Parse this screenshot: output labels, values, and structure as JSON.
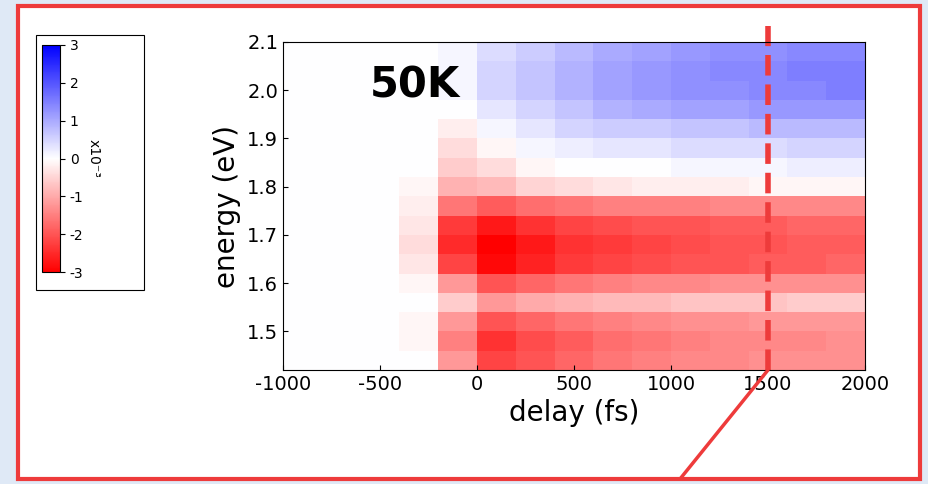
{
  "chart_data": {
    "type": "heatmap",
    "annotations": [
      "50K"
    ],
    "x_label": "delay (fs)",
    "y_label": "energy (eV)",
    "xlim": [
      -1000,
      2000
    ],
    "xticks": [
      -1000,
      -500,
      0,
      500,
      1000,
      1500,
      2000
    ],
    "ylim": [
      1.42,
      2.1
    ],
    "yticks": [
      1.5,
      1.6,
      1.7,
      1.8,
      1.9,
      2.0,
      2.1
    ],
    "grid": false,
    "delay_edges": [
      -1000,
      -800,
      -600,
      -400,
      -200,
      0,
      200,
      400,
      600,
      800,
      1000,
      1200,
      1400,
      1600,
      1800,
      2000
    ],
    "energy_edges": [
      1.42,
      1.46,
      1.5,
      1.54,
      1.58,
      1.62,
      1.66,
      1.7,
      1.74,
      1.78,
      1.82,
      1.86,
      1.9,
      1.94,
      1.98,
      2.02,
      2.06,
      2.1
    ],
    "cells": [
      [
        0,
        0,
        0,
        0,
        -1.2,
        -2.2,
        -2.0,
        -1.8,
        -1.6,
        -1.5,
        -1.4,
        -1.4,
        -1.3,
        -1.3,
        -1.3
      ],
      [
        0,
        0,
        0,
        -0.1,
        -1.5,
        -2.4,
        -2.1,
        -1.9,
        -1.7,
        -1.6,
        -1.5,
        -1.4,
        -1.4,
        -1.4,
        -1.3
      ],
      [
        0,
        0,
        0,
        -0.1,
        -1.2,
        -2.0,
        -1.8,
        -1.6,
        -1.5,
        -1.4,
        -1.3,
        -1.3,
        -1.2,
        -1.2,
        -1.2
      ],
      [
        0,
        0,
        0,
        0,
        -0.6,
        -1.2,
        -1.0,
        -0.9,
        -0.8,
        -0.8,
        -0.7,
        -0.7,
        -0.7,
        -0.6,
        -0.6
      ],
      [
        0,
        0,
        0,
        -0.1,
        -1.2,
        -2.0,
        -1.8,
        -1.6,
        -1.5,
        -1.4,
        -1.4,
        -1.3,
        -1.3,
        -1.3,
        -1.3
      ],
      [
        0,
        0,
        0,
        -0.3,
        -2.2,
        -2.9,
        -2.6,
        -2.3,
        -2.2,
        -2.1,
        -2.0,
        -2.0,
        -1.9,
        -1.9,
        -1.8
      ],
      [
        0,
        0,
        0,
        -0.4,
        -2.5,
        -3.0,
        -2.7,
        -2.4,
        -2.3,
        -2.2,
        -2.1,
        -2.0,
        -2.0,
        -1.9,
        -1.9
      ],
      [
        0,
        0,
        0,
        -0.3,
        -2.3,
        -2.7,
        -2.4,
        -2.2,
        -2.1,
        -2.0,
        -2.0,
        -1.9,
        -1.9,
        -1.8,
        -1.8
      ],
      [
        0,
        0,
        0,
        -0.2,
        -1.6,
        -1.9,
        -1.7,
        -1.6,
        -1.5,
        -1.5,
        -1.5,
        -1.4,
        -1.4,
        -1.4,
        -1.4
      ],
      [
        0,
        0,
        0,
        -0.1,
        -0.9,
        -0.8,
        -0.5,
        -0.4,
        -0.3,
        -0.2,
        -0.2,
        -0.2,
        -0.1,
        -0.1,
        -0.1
      ],
      [
        0,
        0,
        0,
        0,
        -0.6,
        -0.4,
        -0.1,
        0,
        0,
        0,
        0.1,
        0.1,
        0.1,
        0.2,
        0.2
      ],
      [
        0,
        0,
        0,
        0,
        -0.4,
        -0.1,
        0.1,
        0.2,
        0.3,
        0.3,
        0.4,
        0.4,
        0.4,
        0.5,
        0.5
      ],
      [
        0,
        0,
        0,
        0,
        -0.2,
        0.1,
        0.3,
        0.5,
        0.6,
        0.6,
        0.7,
        0.7,
        0.8,
        0.8,
        0.8
      ],
      [
        0,
        0,
        0,
        0,
        0,
        0.3,
        0.5,
        0.7,
        0.9,
        1.0,
        1.1,
        1.1,
        1.2,
        1.2,
        1.2
      ],
      [
        0,
        0,
        0,
        0,
        0.1,
        0.5,
        0.7,
        0.9,
        1.1,
        1.2,
        1.3,
        1.3,
        1.4,
        1.4,
        1.5
      ],
      [
        0,
        0,
        0,
        0,
        0.1,
        0.5,
        0.7,
        0.9,
        1.1,
        1.2,
        1.3,
        1.4,
        1.4,
        1.5,
        1.5
      ],
      [
        0,
        0,
        0,
        0,
        0.1,
        0.4,
        0.6,
        0.8,
        1.0,
        1.1,
        1.2,
        1.3,
        1.3,
        1.4,
        1.4
      ]
    ],
    "colorbar_range": [
      -3,
      3
    ],
    "colorbar_ticks": [
      -3,
      -2,
      -1,
      0,
      1,
      2,
      3
    ],
    "colorbar_label": "x10⁻³",
    "vline_delay": 1500
  }
}
